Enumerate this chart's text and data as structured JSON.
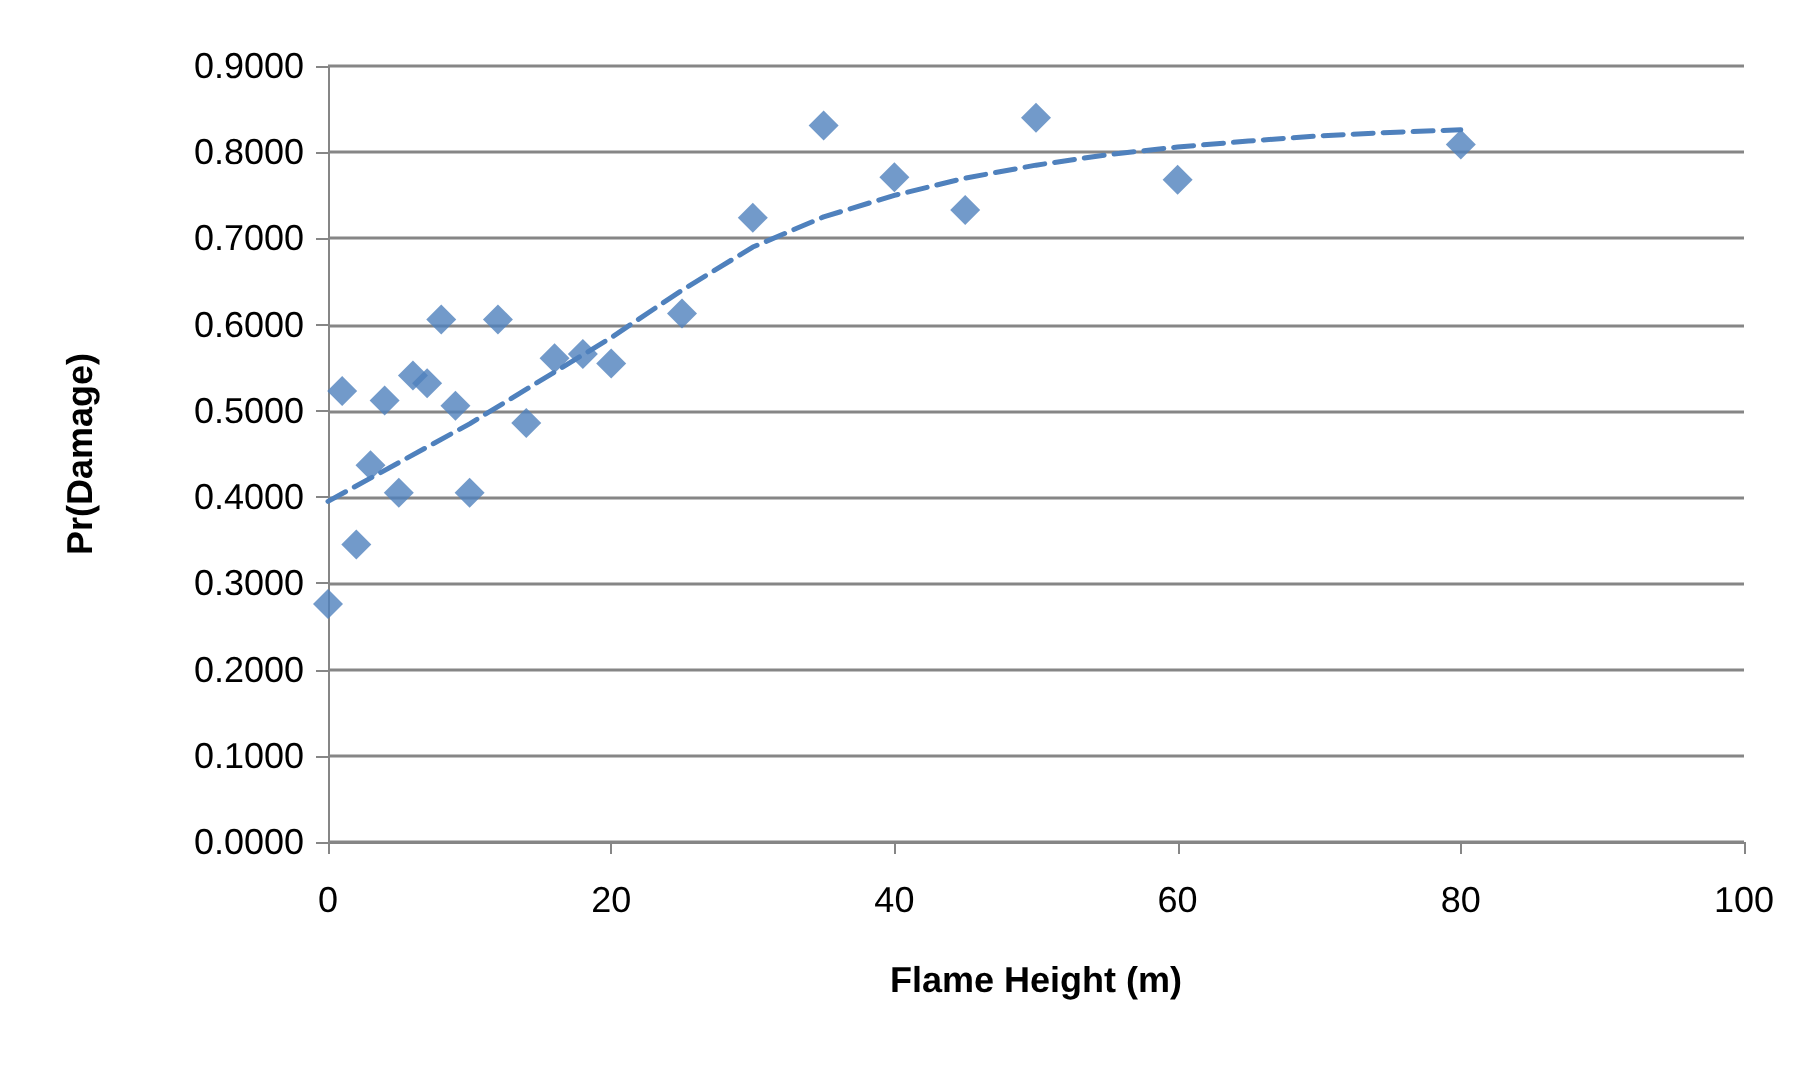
{
  "chart_data": {
    "type": "scatter",
    "xlabel": "Flame Height (m)",
    "ylabel": "Pr(Damage)",
    "xlim": [
      0,
      100
    ],
    "xticks": [
      0,
      20,
      40,
      60,
      80,
      100
    ],
    "ylim": [
      0,
      0.9
    ],
    "yticks": [
      {
        "value": 0,
        "label": "0.0000"
      },
      {
        "value": 0.1,
        "label": "0.1000"
      },
      {
        "value": 0.2,
        "label": "0.2000"
      },
      {
        "value": 0.3,
        "label": "0.3000"
      },
      {
        "value": 0.4,
        "label": "0.4000"
      },
      {
        "value": 0.5,
        "label": "0.5000"
      },
      {
        "value": 0.6,
        "label": "0.6000"
      },
      {
        "value": 0.7,
        "label": "0.7000"
      },
      {
        "value": 0.8,
        "label": "0.8000"
      },
      {
        "value": 0.9,
        "label": "0.9000"
      }
    ],
    "grid": "y",
    "marker": "diamond",
    "series": [
      {
        "color": "#4f81bd",
        "x": [
          0,
          1,
          2,
          3,
          4,
          5,
          6,
          7,
          8,
          9,
          10,
          12,
          14,
          16,
          18,
          20,
          25,
          30,
          35,
          40,
          45,
          50,
          60,
          80
        ],
        "values": [
          0.276,
          0.523,
          0.345,
          0.437,
          0.512,
          0.405,
          0.541,
          0.532,
          0.606,
          0.506,
          0.405,
          0.606,
          0.486,
          0.561,
          0.566,
          0.555,
          0.613,
          0.724,
          0.831,
          0.771,
          0.733,
          0.84,
          0.768,
          0.809
        ]
      },
      {
        "type": "line",
        "color": "#4f81bd",
        "line_style": "dashed",
        "marker": "none",
        "x": [
          0,
          5,
          10,
          15,
          20,
          25,
          30,
          35,
          40,
          45,
          50,
          55,
          60,
          65,
          70,
          75,
          80
        ],
        "values": [
          0.395,
          0.44,
          0.485,
          0.535,
          0.585,
          0.64,
          0.69,
          0.725,
          0.75,
          0.77,
          0.785,
          0.797,
          0.806,
          0.813,
          0.819,
          0.823,
          0.826
        ]
      }
    ]
  }
}
